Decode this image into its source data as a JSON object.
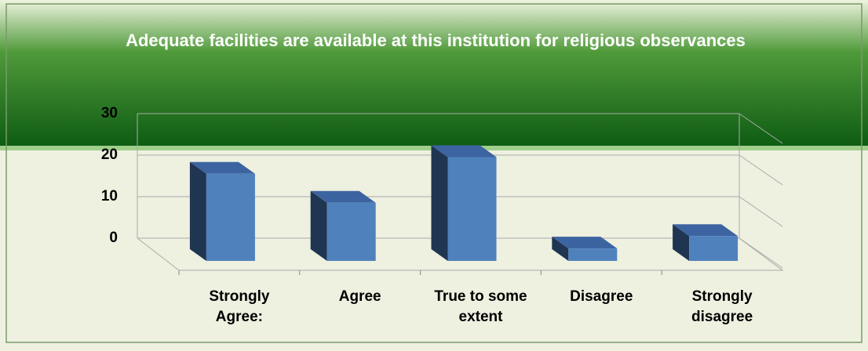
{
  "chart_data": {
    "type": "bar",
    "title": "Adequate facilities are available at this institution for religious observances",
    "categories": [
      "Strongly Agree:",
      "Agree",
      "True to some extent",
      "Disagree",
      "Strongly disagree"
    ],
    "values": [
      21,
      14,
      25,
      3,
      6
    ],
    "color": "#4f81bd",
    "ylim": [
      0,
      30
    ],
    "yticks": [
      0,
      10,
      20,
      30
    ],
    "grid": true
  }
}
